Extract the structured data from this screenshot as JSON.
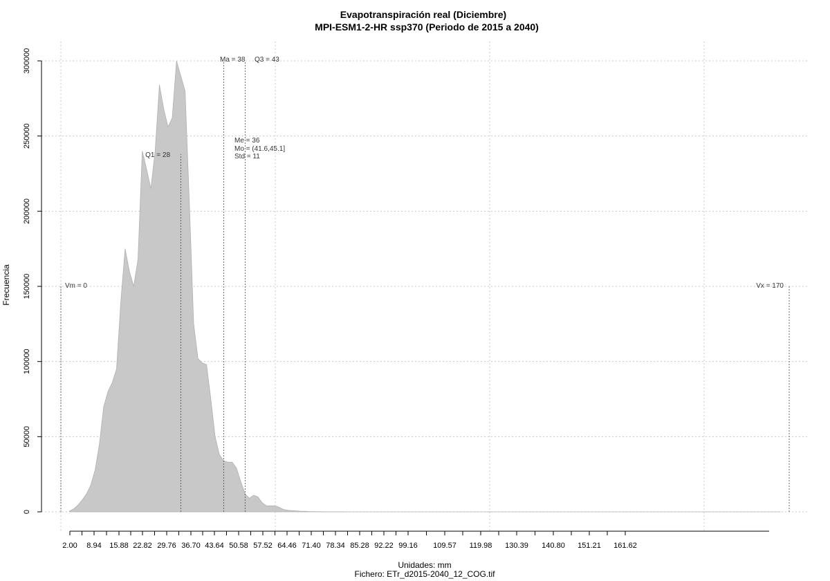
{
  "chart_data": {
    "type": "area",
    "title": "Evapotranspiración real (Diciembre)",
    "subtitle": "MPI-ESM1-2-HR ssp370 (Periodo de 2015 a 2040)",
    "xlabel": "Unidades: mm",
    "file_label": "Fichero: ETr_d2015-2040_12_COG.tif",
    "ylabel": "Frecuencia",
    "xlim": [
      0,
      170
    ],
    "ylim": [
      0,
      300000
    ],
    "x_ticks": [
      2.0,
      8.94,
      15.88,
      22.82,
      29.76,
      36.7,
      43.64,
      50.58,
      57.52,
      64.46,
      71.4,
      78.34,
      85.28,
      92.22,
      99.16,
      109.57,
      119.98,
      130.39,
      140.8,
      151.21,
      161.62
    ],
    "x_tick_labels": [
      "2.00",
      "8.94",
      "15.88",
      "22.82",
      "29.76",
      "36.70",
      "43.64",
      "50.58",
      "57.52",
      "64.46",
      "71.40",
      "78.34",
      "85.28",
      "92.22",
      "99.16",
      "109.57",
      "119.98",
      "130.39",
      "140.80",
      "151.21",
      "161.62"
    ],
    "y_ticks": [
      0,
      50000,
      100000,
      150000,
      200000,
      250000,
      300000
    ],
    "y_tick_labels": [
      "0",
      "50000",
      "100000",
      "150000",
      "200000",
      "250000",
      "300000"
    ],
    "grid": true,
    "series": [
      {
        "color": "#c8c8c8",
        "x": [
          2,
          3,
          4,
          5,
          6,
          7,
          8,
          9,
          10,
          11,
          12,
          13,
          14,
          15,
          16,
          17,
          18,
          19,
          20,
          21,
          22,
          23,
          24,
          25,
          26,
          27,
          28,
          29,
          30,
          31,
          32,
          33,
          34,
          35,
          36,
          37,
          38,
          39,
          40,
          41,
          42,
          43,
          44,
          45,
          46,
          47,
          48,
          49,
          50,
          51,
          52,
          53,
          54,
          55,
          56,
          57,
          58,
          59,
          60,
          61,
          62,
          63,
          64,
          65,
          66,
          67,
          68,
          69,
          70,
          72,
          74,
          76,
          78,
          80,
          84,
          88,
          92,
          96,
          100,
          110,
          120,
          130,
          140,
          150,
          160,
          168
        ],
        "y": [
          500,
          2000,
          4500,
          8000,
          12000,
          18000,
          28000,
          45000,
          70000,
          80000,
          86000,
          95000,
          140000,
          175000,
          160000,
          150000,
          168000,
          240000,
          228000,
          215000,
          240000,
          284000,
          268000,
          256000,
          262000,
          300000,
          290000,
          280000,
          205000,
          125000,
          102000,
          99000,
          98000,
          75000,
          50000,
          38000,
          34000,
          33000,
          33000,
          29000,
          20000,
          12000,
          9000,
          11000,
          10000,
          6000,
          4000,
          4000,
          4000,
          3000,
          1500,
          1000,
          800,
          600,
          400,
          300,
          200,
          150,
          100,
          80,
          60,
          50,
          40,
          30,
          25,
          20,
          15,
          12,
          10,
          8,
          6,
          5,
          4,
          3,
          2,
          2,
          1,
          1,
          1,
          1,
          0,
          0,
          0,
          0,
          0,
          0
        ]
      }
    ],
    "annotations": [
      {
        "text": "Vm = 0",
        "x": 0,
        "line_height": 150000
      },
      {
        "text": "Q1 = 28",
        "x": 28,
        "line_height": 238000
      },
      {
        "text": "Ma = 38",
        "x": 38,
        "line_height": 300000
      },
      {
        "text": "Q3 = 43",
        "x": 43,
        "line_height": 300000
      },
      {
        "text": "Me = 36",
        "x": 36
      },
      {
        "text": "Mo = (41.6,45.1]",
        "x": 36
      },
      {
        "text": "Std = 11",
        "x": 36
      },
      {
        "text": "Vx = 170",
        "x": 170,
        "line_height": 150000
      }
    ]
  }
}
